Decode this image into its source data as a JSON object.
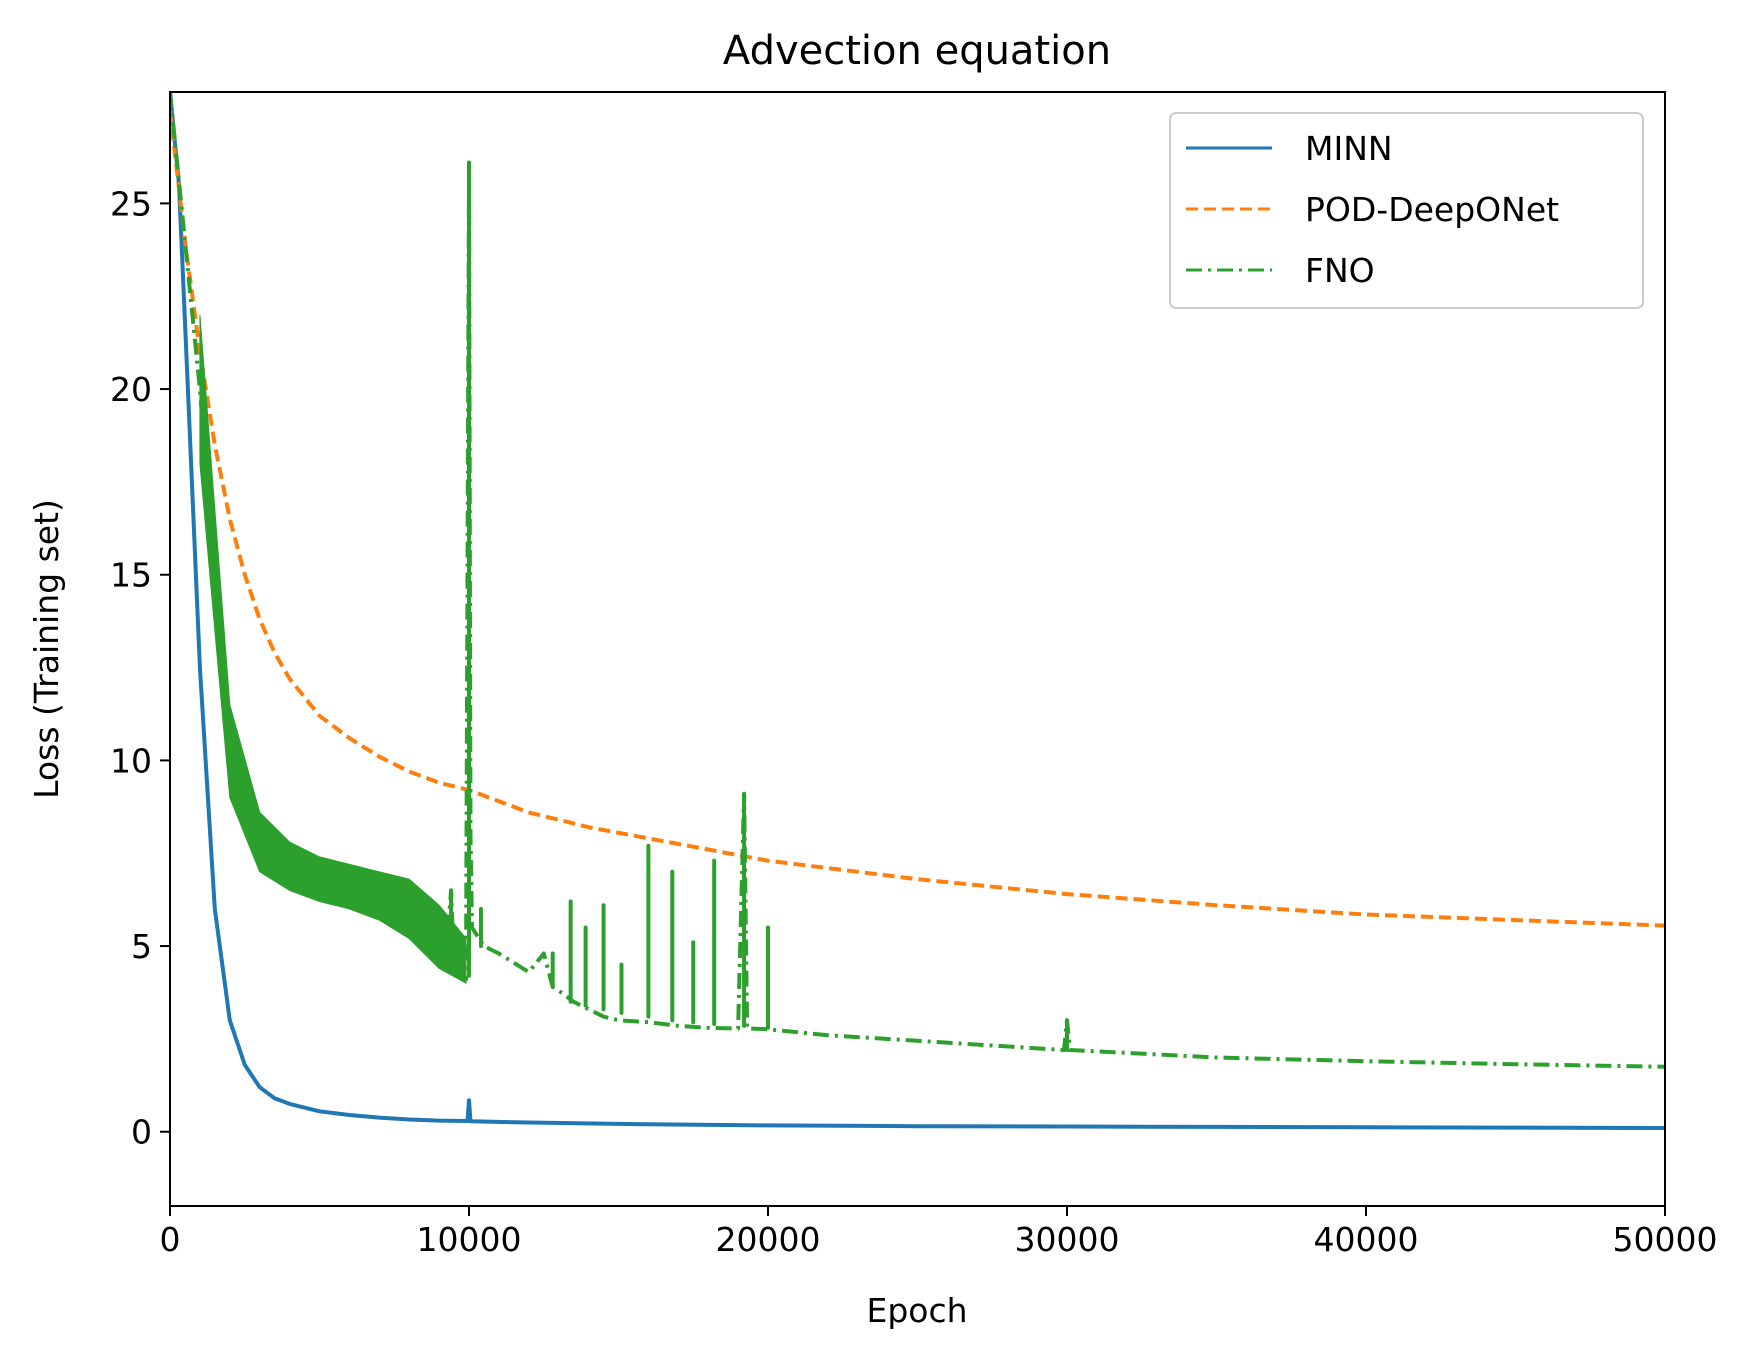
{
  "chart_data": {
    "type": "line",
    "title": "Advection equation",
    "xlabel": "Epoch",
    "ylabel": "Loss (Training set)",
    "xlim": [
      0,
      50000
    ],
    "ylim": [
      -2,
      28
    ],
    "xticks": [
      0,
      10000,
      20000,
      30000,
      40000,
      50000
    ],
    "yticks": [
      0,
      5,
      10,
      15,
      20,
      25
    ],
    "grid": false,
    "legend_position": "top-right",
    "series": [
      {
        "name": "MINN",
        "color": "#1f77b4",
        "style": "solid",
        "x": [
          0,
          300,
          600,
          1000,
          1500,
          2000,
          2500,
          3000,
          3500,
          4000,
          5000,
          6000,
          7000,
          8000,
          9000,
          9950,
          10000,
          10050,
          12000,
          15000,
          20000,
          25000,
          30000,
          35000,
          40000,
          45000,
          50000
        ],
        "y": [
          28.0,
          25.5,
          20.0,
          12.5,
          6.0,
          3.0,
          1.8,
          1.2,
          0.9,
          0.75,
          0.55,
          0.45,
          0.38,
          0.33,
          0.3,
          0.29,
          0.85,
          0.28,
          0.25,
          0.21,
          0.17,
          0.15,
          0.14,
          0.13,
          0.12,
          0.11,
          0.1
        ]
      },
      {
        "name": "POD-DeepONet",
        "color": "#ff7f0e",
        "style": "dashed",
        "x": [
          0,
          500,
          1000,
          1500,
          2000,
          2500,
          3000,
          3500,
          4000,
          5000,
          6000,
          7000,
          8000,
          9000,
          10000,
          12000,
          14000,
          16000,
          18000,
          20000,
          25000,
          30000,
          35000,
          40000,
          45000,
          50000
        ],
        "y": [
          27.5,
          24.0,
          21.0,
          18.5,
          16.5,
          15.0,
          13.8,
          12.9,
          12.2,
          11.2,
          10.6,
          10.1,
          9.7,
          9.4,
          9.2,
          8.6,
          8.2,
          7.9,
          7.6,
          7.3,
          6.8,
          6.4,
          6.1,
          5.85,
          5.7,
          5.55
        ]
      },
      {
        "name": "FNO",
        "color": "#2ca02c",
        "style": "dashdot",
        "x": [
          0,
          500,
          1000,
          1500,
          2000,
          2500,
          3000,
          4000,
          5000,
          6000,
          7000,
          8000,
          8500,
          9000,
          9200,
          9400,
          9500,
          9700,
          9900,
          10000,
          10050,
          10100,
          10500,
          11000,
          12000,
          12500,
          12800,
          13000,
          13500,
          14000,
          14500,
          15000,
          16000,
          16500,
          17000,
          18000,
          19000,
          19200,
          19300,
          20000,
          20100,
          22000,
          25000,
          29900,
          30000,
          30100,
          35000,
          40000,
          45000,
          50000
        ],
        "y": [
          28.0,
          24.0,
          20.0,
          15.0,
          11.0,
          9.0,
          8.0,
          7.2,
          6.8,
          6.6,
          6.3,
          6.0,
          5.6,
          5.2,
          4.5,
          6.5,
          4.3,
          4.2,
          4.1,
          26.0,
          8.0,
          5.5,
          5.0,
          4.8,
          4.3,
          4.8,
          3.9,
          3.8,
          3.5,
          3.3,
          3.1,
          3.0,
          2.95,
          2.9,
          2.85,
          2.8,
          2.78,
          9.1,
          2.78,
          2.76,
          2.75,
          2.6,
          2.45,
          2.2,
          3.0,
          2.2,
          2.0,
          1.9,
          1.82,
          1.75
        ]
      }
    ],
    "fno_spikes": [
      {
        "x": 9400,
        "top": 6.5,
        "base": 4.6
      },
      {
        "x": 10000,
        "top": 26.1,
        "base": 4.2
      },
      {
        "x": 10400,
        "top": 6.0,
        "base": 5.0
      },
      {
        "x": 12800,
        "top": 4.8,
        "base": 3.9
      },
      {
        "x": 13400,
        "top": 6.2,
        "base": 3.5
      },
      {
        "x": 13900,
        "top": 5.5,
        "base": 3.4
      },
      {
        "x": 14500,
        "top": 6.1,
        "base": 3.3
      },
      {
        "x": 15100,
        "top": 4.5,
        "base": 3.2
      },
      {
        "x": 16000,
        "top": 7.7,
        "base": 3.1
      },
      {
        "x": 16800,
        "top": 7.0,
        "base": 3.0
      },
      {
        "x": 17500,
        "top": 5.1,
        "base": 2.95
      },
      {
        "x": 18200,
        "top": 7.3,
        "base": 2.9
      },
      {
        "x": 19200,
        "top": 9.1,
        "base": 2.85
      },
      {
        "x": 20000,
        "top": 5.5,
        "base": 2.8
      },
      {
        "x": 30000,
        "top": 3.0,
        "base": 2.2
      }
    ]
  }
}
